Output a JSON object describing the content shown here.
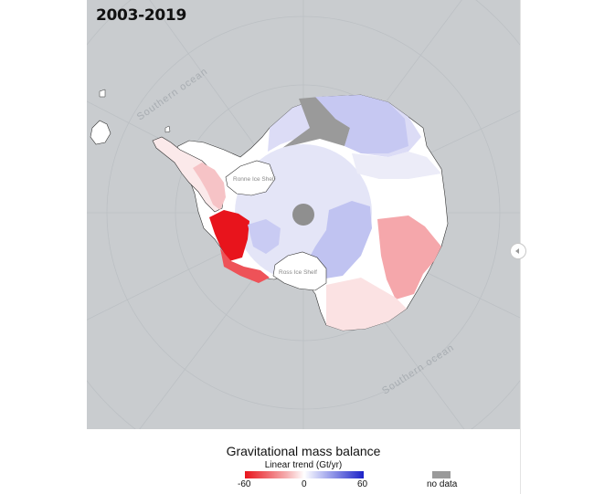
{
  "map": {
    "period": "2003-2019",
    "ocean_label_left": "Southern ocean",
    "ocean_label_right": "Southern ocean",
    "ice_shelves": [
      "Ronne Ice Shelf",
      "Ross Ice Shelf"
    ],
    "colors": {
      "background": "#c9cccf",
      "strong_loss": "#e8141c",
      "moderate_loss": "#f7a7aa",
      "neutral": "#ffffff",
      "gain": "#b9bdf2",
      "no_data": "#9a9a9a"
    }
  },
  "legend": {
    "title": "Gravitational mass balance",
    "subtitle": "Linear trend (Gt/yr)",
    "ticks": [
      "-60",
      "0",
      "60"
    ],
    "no_data_label": "no data",
    "scale_min": -60,
    "scale_max": 60
  },
  "controls": {
    "side_handle_icon": "chevron-left-icon"
  }
}
